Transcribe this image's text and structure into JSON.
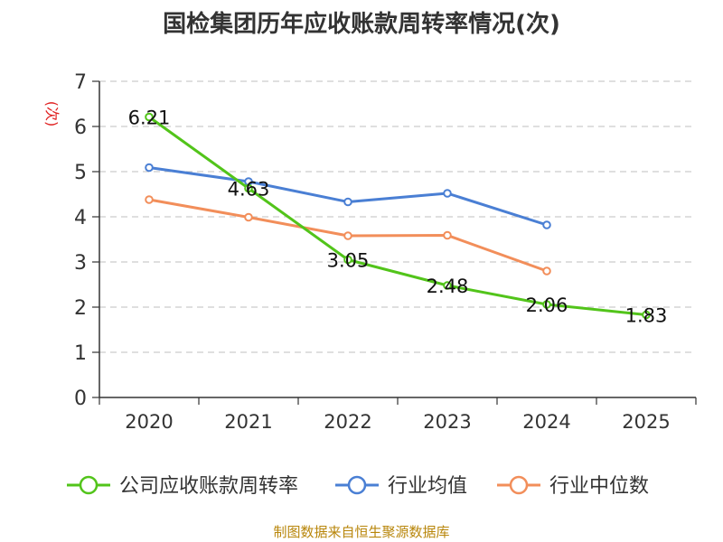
{
  "chart_data": {
    "type": "line",
    "title": "国检集团历年应收账款周转率情况(次)",
    "ylabel": "(次)",
    "xlabel": "",
    "categories": [
      "2020",
      "2021",
      "2022",
      "2023",
      "2024",
      "2025"
    ],
    "ylim": [
      0,
      7
    ],
    "yticks": [
      "0",
      "1",
      "2",
      "3",
      "4",
      "5",
      "6",
      "7"
    ],
    "grid": true,
    "legend_position": "bottom",
    "series": [
      {
        "name": "公司应收账款周转率",
        "color": "#52c41a",
        "values": [
          6.21,
          4.63,
          3.05,
          2.48,
          2.06,
          1.83
        ],
        "labels": [
          "6.21",
          "4.63",
          "3.05",
          "2.48",
          "2.06",
          "1.83"
        ]
      },
      {
        "name": "行业均值",
        "color": "#4a7fd4",
        "values": [
          5.09,
          4.78,
          4.33,
          4.52,
          3.82,
          null
        ]
      },
      {
        "name": "行业中位数",
        "color": "#f28e5a",
        "values": [
          4.38,
          3.99,
          3.58,
          3.59,
          2.8,
          null
        ]
      }
    ]
  },
  "footer": {
    "source": "制图数据来自恒生聚源数据库"
  },
  "colors": {
    "ylabel": "#e02020",
    "axis": "#333333",
    "grid": "#cccccc"
  }
}
